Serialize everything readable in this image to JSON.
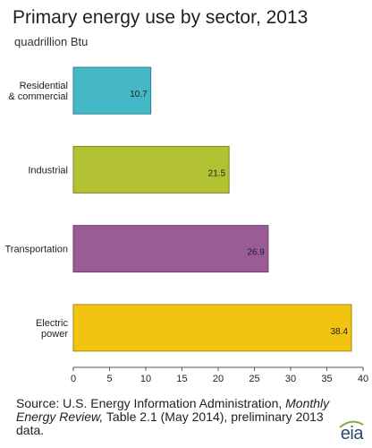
{
  "title": "Primary energy use by sector, 2013",
  "subtitle": "quadrillion Btu",
  "chart_data": {
    "type": "bar",
    "orientation": "horizontal",
    "title": "Primary energy use by sector, 2013",
    "ylabel": "quadrillion Btu",
    "categories": [
      "Residential\n& commercial",
      "Industrial",
      "Transportation",
      "Electric\npower"
    ],
    "values": [
      10.7,
      21.5,
      26.9,
      38.4
    ],
    "colors": [
      "#45b8c8",
      "#b3c232",
      "#9b5b96",
      "#f3c312"
    ],
    "xlim": [
      0,
      40
    ],
    "xticks": [
      0,
      5,
      10,
      15,
      20,
      25,
      30,
      35,
      40
    ],
    "grid": false,
    "legend": "none"
  },
  "source": {
    "prefix": "Source: U.S. Energy Information Administration, ",
    "italic": "Monthly Energy Review,",
    "suffix": " Table 2.1 (May 2014), preliminary 2013 data."
  },
  "logo": "eia"
}
